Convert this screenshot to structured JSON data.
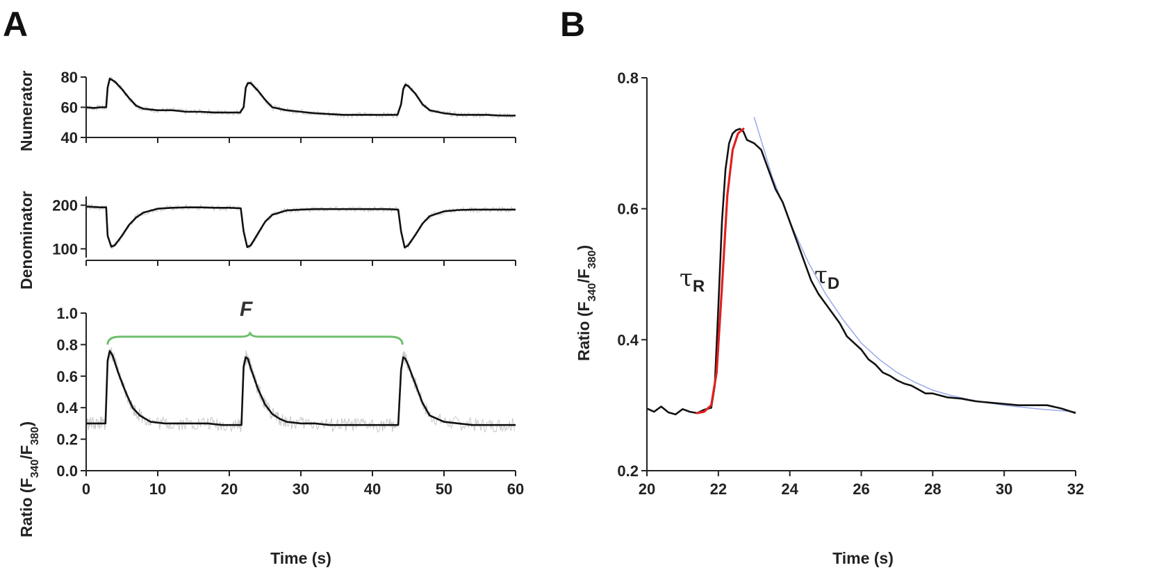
{
  "panels": {
    "a": "A",
    "b": "B"
  },
  "colors": {
    "trace": "#111111",
    "noise": "#c8c8c8",
    "bracket": "#6fbf6f",
    "fit_rise": "#e02020",
    "fit_decay": "#9aa8e8"
  },
  "chart_data": [
    {
      "id": "A-numerator",
      "type": "line",
      "ylabel": "Numerator",
      "xlim": [
        0,
        60
      ],
      "ylim": [
        40,
        80
      ],
      "yticks": [
        "40",
        "60",
        "80"
      ],
      "xticks": [
        0,
        10,
        20,
        30,
        40,
        50,
        60
      ],
      "series": [
        {
          "x": [
            0,
            1,
            2,
            2.8,
            3,
            3.3,
            4,
            5,
            6,
            7,
            8,
            10,
            12,
            14,
            16,
            18,
            20,
            21.5,
            22,
            22.3,
            22.6,
            23,
            24,
            25,
            26,
            28,
            30,
            32,
            34,
            36,
            38,
            40,
            42,
            43.5,
            44,
            44.3,
            44.6,
            45,
            46,
            47,
            48,
            50,
            52,
            54,
            56,
            58,
            60
          ],
          "y": [
            60,
            59.5,
            60,
            60,
            73,
            79,
            77,
            72,
            66,
            61,
            59,
            58,
            58,
            57,
            57,
            56.5,
            56.5,
            56.5,
            60,
            73,
            76,
            76,
            71,
            65,
            60,
            58,
            57,
            56,
            55.5,
            55,
            55,
            55,
            55,
            55,
            62,
            72,
            75,
            74,
            69,
            62,
            58,
            56,
            55,
            55,
            55,
            54.5,
            54.5
          ]
        }
      ]
    },
    {
      "id": "A-denominator",
      "type": "line",
      "ylabel": "Denominator",
      "xlim": [
        0,
        60
      ],
      "ylim": [
        80,
        220
      ],
      "yticks": [
        "100",
        "200"
      ],
      "xticks": [
        0,
        10,
        20,
        30,
        40,
        50,
        60
      ],
      "series": [
        {
          "x": [
            0,
            1,
            2,
            2.8,
            3,
            3.5,
            4,
            5,
            6,
            7,
            8,
            10,
            12,
            14,
            16,
            18,
            20,
            21.6,
            22,
            22.5,
            23,
            24,
            25,
            26,
            28,
            30,
            32,
            34,
            36,
            38,
            40,
            42,
            43.6,
            44,
            44.5,
            45,
            46,
            47,
            48,
            50,
            52,
            54,
            56,
            58,
            60
          ],
          "y": [
            197,
            196,
            195,
            195,
            130,
            105,
            108,
            130,
            155,
            172,
            183,
            192,
            194,
            195,
            195,
            194,
            194,
            193,
            140,
            104,
            108,
            135,
            162,
            178,
            188,
            190,
            191,
            191,
            191,
            191,
            191,
            191,
            190,
            140,
            103,
            108,
            132,
            158,
            175,
            186,
            189,
            190,
            190,
            190,
            190
          ]
        }
      ]
    },
    {
      "id": "A-ratio",
      "type": "line",
      "ylabel": "Ratio (F340/F380)",
      "xlabel": "Time (s)",
      "xlim": [
        0,
        60
      ],
      "ylim": [
        0,
        1.0
      ],
      "yticks": [
        "0.0",
        "0.2",
        "0.4",
        "0.6",
        "0.8",
        "1.0"
      ],
      "xticks": [
        "0",
        "10",
        "20",
        "30",
        "40",
        "50",
        "60"
      ],
      "annotation": "F",
      "series": [
        {
          "x": [
            0,
            1,
            2,
            2.7,
            3,
            3.3,
            3.7,
            4.5,
            5.5,
            6.5,
            7.5,
            9,
            11,
            13,
            15,
            17,
            19,
            21,
            21.7,
            22,
            22.3,
            22.6,
            23,
            24,
            25,
            26,
            27,
            28,
            30,
            32,
            34,
            36,
            38,
            40,
            42,
            43.6,
            44,
            44.3,
            44.6,
            45,
            46,
            47,
            48,
            50,
            52,
            54,
            56,
            58,
            60
          ],
          "y": [
            0.3,
            0.3,
            0.3,
            0.3,
            0.7,
            0.76,
            0.73,
            0.62,
            0.5,
            0.4,
            0.35,
            0.31,
            0.3,
            0.3,
            0.3,
            0.3,
            0.29,
            0.29,
            0.29,
            0.66,
            0.72,
            0.71,
            0.65,
            0.52,
            0.42,
            0.36,
            0.33,
            0.31,
            0.3,
            0.3,
            0.29,
            0.29,
            0.29,
            0.29,
            0.29,
            0.29,
            0.64,
            0.72,
            0.71,
            0.67,
            0.55,
            0.43,
            0.35,
            0.31,
            0.3,
            0.29,
            0.29,
            0.29,
            0.29
          ]
        }
      ]
    },
    {
      "id": "B",
      "type": "line",
      "ylabel": "Ratio (F340/F380)",
      "xlabel": "Time (s)",
      "xlim": [
        20,
        32
      ],
      "ylim": [
        0.2,
        0.8
      ],
      "yticks": [
        "0.2",
        "0.4",
        "0.6",
        "0.8"
      ],
      "xticks": [
        "20",
        "22",
        "24",
        "26",
        "28",
        "30",
        "32"
      ],
      "annotations": {
        "tau_r": "τ",
        "tau_r_sub": "R",
        "tau_d": "τ",
        "tau_d_sub": "D"
      },
      "series": [
        {
          "x": [
            20,
            20.2,
            20.4,
            20.6,
            20.8,
            21,
            21.2,
            21.4,
            21.6,
            21.8,
            21.9,
            22,
            22.1,
            22.2,
            22.3,
            22.4,
            22.5,
            22.6,
            22.7,
            22.8,
            23,
            23.2,
            23.4,
            23.6,
            23.8,
            24,
            24.2,
            24.4,
            24.6,
            24.8,
            25,
            25.2,
            25.4,
            25.6,
            25.8,
            26,
            26.2,
            26.4,
            26.6,
            26.8,
            27,
            27.2,
            27.4,
            27.6,
            27.8,
            28,
            28.4,
            28.8,
            29.2,
            29.6,
            30,
            30.4,
            30.8,
            31.2,
            31.6,
            32
          ],
          "y": [
            0.295,
            0.29,
            0.298,
            0.289,
            0.286,
            0.294,
            0.29,
            0.288,
            0.293,
            0.296,
            0.33,
            0.45,
            0.58,
            0.66,
            0.7,
            0.715,
            0.72,
            0.722,
            0.718,
            0.705,
            0.7,
            0.69,
            0.66,
            0.63,
            0.61,
            0.58,
            0.55,
            0.52,
            0.49,
            0.47,
            0.455,
            0.44,
            0.425,
            0.405,
            0.395,
            0.385,
            0.37,
            0.362,
            0.35,
            0.345,
            0.338,
            0.333,
            0.33,
            0.324,
            0.318,
            0.318,
            0.312,
            0.31,
            0.306,
            0.304,
            0.302,
            0.3,
            0.3,
            0.3,
            0.295,
            0.288
          ]
        },
        {
          "name": "",
          "x": [
            21.4,
            21.6,
            21.8,
            21.95,
            22.1,
            22.25,
            22.4,
            22.55,
            22.7
          ],
          "y": [
            0.288,
            0.29,
            0.3,
            0.35,
            0.48,
            0.62,
            0.69,
            0.715,
            0.722
          ]
        },
        {
          "name": "",
          "x": [
            23,
            23.5,
            24,
            24.5,
            25,
            25.5,
            26,
            26.5,
            27,
            27.5,
            28,
            28.5,
            29,
            29.5,
            30,
            30.5,
            31,
            31.5,
            32
          ],
          "y": [
            0.74,
            0.65,
            0.58,
            0.52,
            0.47,
            0.43,
            0.395,
            0.37,
            0.35,
            0.335,
            0.323,
            0.315,
            0.309,
            0.304,
            0.3,
            0.297,
            0.294,
            0.292,
            0.29
          ]
        }
      ]
    }
  ]
}
